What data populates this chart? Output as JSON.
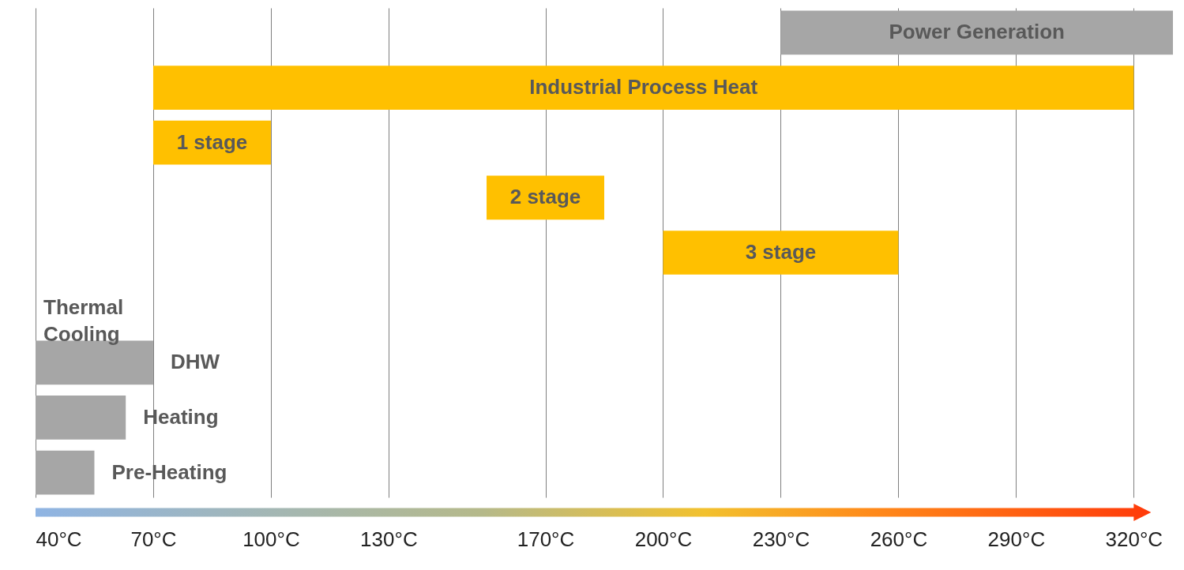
{
  "chart_data": {
    "type": "bar",
    "orientation": "horizontal",
    "categories": [
      "Power Generation",
      "Industrial Process Heat",
      "1 stage",
      "2 stage",
      "3 stage",
      "Thermal Cooling",
      "DHW",
      "Heating",
      "Pre-Heating"
    ],
    "base": [
      230,
      70,
      70,
      155,
      200,
      null,
      40,
      40,
      40
    ],
    "values": [
      100,
      250,
      30,
      30,
      60,
      null,
      30,
      23,
      15
    ],
    "colors": [
      "#a6a6a6",
      "#ffc000",
      "#ffc000",
      "#ffc000",
      "#ffc000",
      null,
      "#a6a6a6",
      "#a6a6a6",
      "#a6a6a6"
    ],
    "xlim": [
      40,
      330
    ],
    "xticks": [
      {
        "value": 40,
        "label": "40°C"
      },
      {
        "value": 70,
        "label": "70°C"
      },
      {
        "value": 100,
        "label": "100°C"
      },
      {
        "value": 130,
        "label": "130°C"
      },
      {
        "value": 170,
        "label": "170°C"
      },
      {
        "value": 200,
        "label": "200°C"
      },
      {
        "value": 230,
        "label": "230°C"
      },
      {
        "value": 260,
        "label": "260°C"
      },
      {
        "value": 290,
        "label": "290°C"
      },
      {
        "value": 320,
        "label": "320°C"
      }
    ],
    "grid": "x"
  }
}
